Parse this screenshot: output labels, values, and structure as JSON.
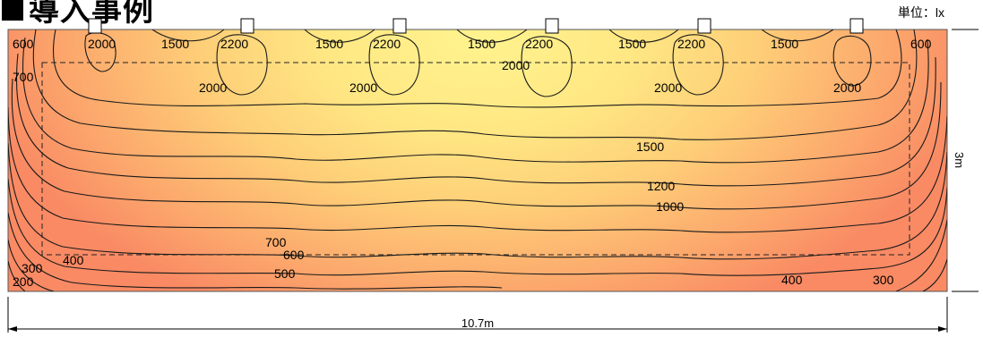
{
  "header": {
    "title": "導入事例",
    "unit": "単位：lx"
  },
  "dimensions": {
    "width": "10.7m",
    "height": "3m"
  },
  "contour_labels": {
    "c600_left": "600",
    "c700_left": "700",
    "c2000_1": "2000",
    "c1500_1": "1500",
    "c2200_1": "2200",
    "c1500_2": "1500",
    "c2200_2": "2200",
    "c1500_3": "1500",
    "c2200_3": "2200",
    "c1500_4": "1500",
    "c2200_4": "2200",
    "c1500_5": "1500",
    "c600_right": "600",
    "c2000_center": "2000",
    "c2000_a": "2000",
    "c2000_b": "2000",
    "c2000_c": "2000",
    "c2000_d": "2000",
    "c1500_mid": "1500",
    "c1200": "1200",
    "c1000": "1000",
    "c700_bottom": "700",
    "c600_bottom": "600",
    "c500": "500",
    "c400_left": "400",
    "c300_left": "300",
    "c200": "200",
    "c400_right": "400",
    "c300_right": "300"
  },
  "colors": {
    "bright": "#fff08a",
    "dark": "#fb8e6a"
  }
}
